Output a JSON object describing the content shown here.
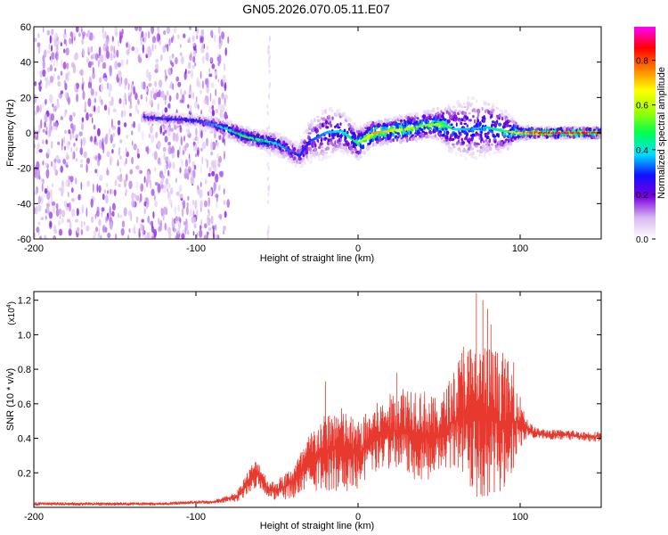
{
  "figure_title": "GN05.2026.070.05.11.E07",
  "colors": {
    "snr_line": "#e8392f",
    "axis": "#000000",
    "background": "#ffffff"
  },
  "chart_data": [
    {
      "type": "heatmap",
      "title": "GN05.2026.070.05.11.E07",
      "xlabel": "Height of straight line (km)",
      "ylabel": "Frequency (Hz)",
      "xlim": [
        -200,
        150
      ],
      "ylim": [
        -60,
        60
      ],
      "x_ticks": [
        -200,
        -100,
        0,
        100
      ],
      "x_tick_labels": [
        "-200",
        "-100",
        "0",
        "100"
      ],
      "y_ticks": [
        -60,
        -40,
        -20,
        0,
        20,
        40,
        60
      ],
      "y_tick_labels": [
        "-60",
        "-40",
        "-20",
        "0",
        "20",
        "40",
        "60"
      ],
      "colorbar": {
        "label": "Normalized spectral amplitude",
        "range": [
          0,
          0.95
        ],
        "ticks": [
          0.0,
          0.2,
          0.4,
          0.6,
          0.8
        ],
        "tick_labels": [
          "0.0",
          "0.2",
          "0.4",
          "0.6",
          "0.8"
        ],
        "colormap": [
          "#ffffff",
          "#d8b8f0",
          "#7a00e0",
          "#1010ff",
          "#00e0ff",
          "#00ff50",
          "#a0ff00",
          "#ffff00",
          "#ff8000",
          "#ff0000",
          "#ff00ff"
        ]
      },
      "noise_region_km": [
        -200,
        -80
      ],
      "ridge": {
        "x": [
          -132,
          -120,
          -100,
          -90,
          -80,
          -70,
          -60,
          -50,
          -40,
          -36,
          -30,
          -20,
          -10,
          0,
          10,
          20,
          30,
          40,
          50,
          60,
          70,
          80,
          90,
          100,
          110,
          120,
          130,
          140,
          150
        ],
        "freq": [
          9,
          8,
          7,
          5,
          2,
          -2,
          -4,
          -6,
          -11,
          -13,
          -5,
          0,
          1,
          -6,
          0,
          1,
          2,
          4,
          5,
          2,
          2,
          3,
          1,
          0,
          0,
          0,
          0,
          0,
          0
        ],
        "amplitude": [
          0.3,
          0.3,
          0.3,
          0.35,
          0.4,
          0.5,
          0.5,
          0.4,
          0.3,
          0.3,
          0.3,
          0.35,
          0.4,
          0.5,
          0.75,
          0.7,
          0.6,
          0.55,
          0.6,
          0.4,
          0.35,
          0.4,
          0.45,
          0.7,
          0.85,
          0.88,
          0.88,
          0.85,
          0.85
        ],
        "spread_hz": [
          3,
          3,
          3,
          4,
          5,
          5,
          5,
          6,
          7,
          7,
          12,
          15,
          12,
          9,
          7,
          7,
          8,
          8,
          9,
          15,
          18,
          16,
          12,
          4,
          3,
          3,
          3,
          3,
          3
        ]
      }
    },
    {
      "type": "line",
      "xlabel": "Height of straight line (km)",
      "ylabel": "SNR (10 * v/v)",
      "scale_label": "(x10",
      "scale_exponent": "4",
      "xlim": [
        -200,
        150
      ],
      "ylim": [
        0,
        1.25
      ],
      "x_ticks": [
        -200,
        -100,
        0,
        100
      ],
      "x_tick_labels": [
        "-200",
        "-100",
        "0",
        "100"
      ],
      "y_ticks": [
        0.2,
        0.4,
        0.6,
        0.8,
        1.0,
        1.2
      ],
      "y_tick_labels": [
        "0.2",
        "0.4",
        "0.6",
        "0.8",
        "1.0",
        "1.2"
      ],
      "series": [
        {
          "name": "SNR",
          "x": [
            -200,
            -180,
            -160,
            -140,
            -120,
            -100,
            -90,
            -80,
            -75,
            -70,
            -65,
            -62,
            -58,
            -55,
            -50,
            -45,
            -40,
            -35,
            -30,
            -25,
            -20,
            -15,
            -10,
            -5,
            0,
            5,
            10,
            15,
            20,
            25,
            30,
            35,
            40,
            45,
            50,
            55,
            60,
            65,
            70,
            75,
            80,
            85,
            90,
            95,
            100,
            105,
            110,
            120,
            130,
            140,
            150
          ],
          "center": [
            0.02,
            0.02,
            0.02,
            0.02,
            0.02,
            0.03,
            0.03,
            0.05,
            0.06,
            0.12,
            0.18,
            0.2,
            0.15,
            0.1,
            0.1,
            0.12,
            0.15,
            0.2,
            0.25,
            0.3,
            0.32,
            0.34,
            0.33,
            0.32,
            0.3,
            0.35,
            0.4,
            0.42,
            0.44,
            0.45,
            0.45,
            0.44,
            0.42,
            0.4,
            0.42,
            0.47,
            0.5,
            0.55,
            0.5,
            0.5,
            0.5,
            0.5,
            0.5,
            0.5,
            0.5,
            0.45,
            0.43,
            0.42,
            0.42,
            0.41,
            0.41
          ],
          "amplitude": [
            0.01,
            0.01,
            0.01,
            0.01,
            0.01,
            0.01,
            0.01,
            0.02,
            0.03,
            0.06,
            0.08,
            0.08,
            0.06,
            0.05,
            0.06,
            0.08,
            0.1,
            0.13,
            0.18,
            0.2,
            0.22,
            0.25,
            0.25,
            0.22,
            0.2,
            0.2,
            0.2,
            0.2,
            0.22,
            0.25,
            0.27,
            0.28,
            0.27,
            0.25,
            0.2,
            0.25,
            0.32,
            0.4,
            0.45,
            0.45,
            0.45,
            0.42,
            0.4,
            0.3,
            0.15,
            0.05,
            0.03,
            0.03,
            0.03,
            0.03,
            0.03
          ],
          "peaks": [
            {
              "x": -20,
              "y": 0.73
            },
            {
              "x": 24,
              "y": 0.78
            },
            {
              "x": 65,
              "y": 0.93
            },
            {
              "x": 73,
              "y": 1.24
            },
            {
              "x": 77,
              "y": 1.2
            },
            {
              "x": 80,
              "y": 1.15
            },
            {
              "x": 82,
              "y": 1.06
            },
            {
              "x": 96,
              "y": 0.84
            }
          ]
        }
      ]
    }
  ]
}
